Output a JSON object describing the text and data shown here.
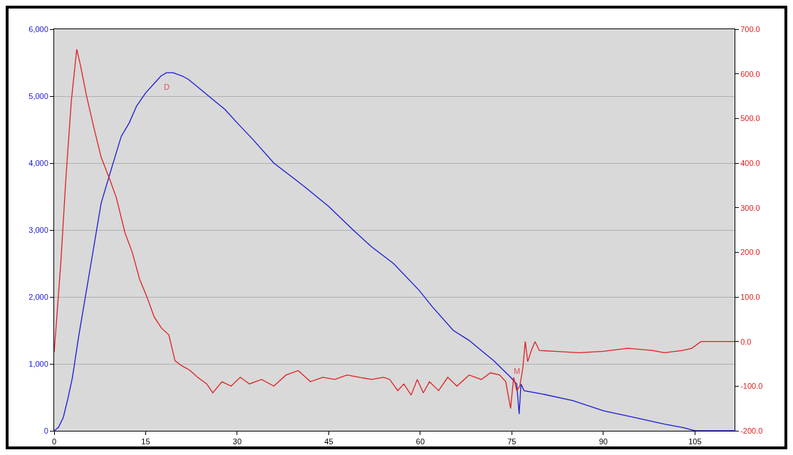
{
  "chart_data": {
    "type": "line",
    "xlim": [
      0,
      111.5
    ],
    "xticks": [
      0,
      15,
      30,
      45,
      60,
      75,
      90,
      105
    ],
    "ylim": [
      0,
      6000
    ],
    "yticks": [
      0,
      {
        "value": 1000,
        "label": "1,000"
      },
      {
        "value": 2000,
        "label": "2,000"
      },
      {
        "value": 3000,
        "label": "3,000"
      },
      {
        "value": 4000,
        "label": "4,000"
      },
      {
        "value": 5000,
        "label": "5,000"
      },
      {
        "value": 6000,
        "label": "6,000"
      }
    ],
    "y2lim": [
      -200,
      700
    ],
    "y2ticks": [
      {
        "value": -200,
        "label": "-200.0"
      },
      {
        "value": -100,
        "label": "-100.0"
      },
      {
        "value": 0,
        "label": "0.0"
      },
      {
        "value": 100,
        "label": "100.0"
      },
      {
        "value": 200,
        "label": "200.0"
      },
      {
        "value": 300,
        "label": "300.0"
      },
      {
        "value": 400,
        "label": "400.0"
      },
      {
        "value": 500,
        "label": "500.0"
      },
      {
        "value": 600,
        "label": "600.0"
      },
      {
        "value": 700,
        "label": "700.0"
      }
    ],
    "grid": "y",
    "marker": "none",
    "line_style": "solid",
    "annotations": [
      {
        "text": "D",
        "x": 18.4,
        "y": 5350
      },
      {
        "text": "M",
        "x": 75.8,
        "y": 700
      }
    ],
    "series": [
      {
        "color": "#1a1ad6",
        "x": [
          0,
          0.7,
          1.5,
          2.3,
          3,
          4,
          5.3,
          6.5,
          7.7,
          9,
          10,
          11,
          12.3,
          13.5,
          15,
          16.5,
          17.5,
          18.4,
          19.5,
          21,
          22,
          24,
          26,
          28,
          30,
          32.6,
          36,
          41,
          45,
          49,
          52,
          55.6,
          59.8,
          62,
          65.4,
          68,
          70,
          72,
          74.8,
          75.8,
          76.2,
          76.5,
          77,
          80,
          85,
          90,
          95,
          100,
          103,
          105,
          106.5,
          111.5
        ],
        "values": [
          0,
          50,
          200,
          500,
          800,
          1400,
          2100,
          2750,
          3400,
          3800,
          4100,
          4400,
          4600,
          4850,
          5050,
          5200,
          5300,
          5350,
          5350,
          5300,
          5250,
          5100,
          4950,
          4800,
          4600,
          4350,
          4000,
          3650,
          3350,
          3000,
          2750,
          2500,
          2100,
          1850,
          1500,
          1350,
          1200,
          1050,
          800,
          700,
          250,
          700,
          600,
          550,
          450,
          300,
          200,
          100,
          50,
          0,
          0,
          0
        ]
      },
      {
        "color": "#e02020",
        "axis": "y2",
        "x": [
          0,
          0.4,
          1.1,
          1.9,
          2.8,
          3.7,
          4.3,
          5.3,
          6.5,
          7.7,
          9.2,
          10.2,
          11.6,
          12.8,
          14,
          15.2,
          16.4,
          17.6,
          18.8,
          19.8,
          21,
          22.2,
          23.5,
          25,
          26,
          27.5,
          29,
          30.5,
          32,
          34,
          36,
          38,
          40,
          42,
          44,
          46,
          48,
          50,
          52,
          54,
          55,
          56.3,
          57.3,
          58.5,
          59.5,
          60.5,
          61.5,
          63,
          64.5,
          66,
          68,
          70,
          71.5,
          73,
          74,
          74.8,
          75.3,
          75.8,
          76.3,
          76.8,
          77.2,
          77.6,
          78.2,
          78.8,
          79.5,
          82,
          86,
          90,
          94,
          98,
          100,
          103,
          104.5,
          106,
          108,
          110,
          111.5
        ],
        "values": [
          -24,
          48,
          178,
          360,
          537,
          655,
          620,
          551,
          480,
          413,
          360,
          322,
          244,
          200,
          140,
          100,
          55,
          30,
          15,
          -43,
          -55,
          -64,
          -80,
          -95,
          -115,
          -90,
          -100,
          -80,
          -95,
          -85,
          -100,
          -75,
          -65,
          -90,
          -80,
          -85,
          -75,
          -80,
          -85,
          -80,
          -85,
          -110,
          -95,
          -120,
          -85,
          -115,
          -90,
          -110,
          -80,
          -100,
          -75,
          -85,
          -70,
          -75,
          -90,
          -150,
          -80,
          -110,
          -100,
          -60,
          0,
          -45,
          -20,
          0,
          -20,
          -22,
          -25,
          -22,
          -15,
          -20,
          -25,
          -20,
          -15,
          0,
          0,
          0,
          0
        ]
      }
    ]
  }
}
